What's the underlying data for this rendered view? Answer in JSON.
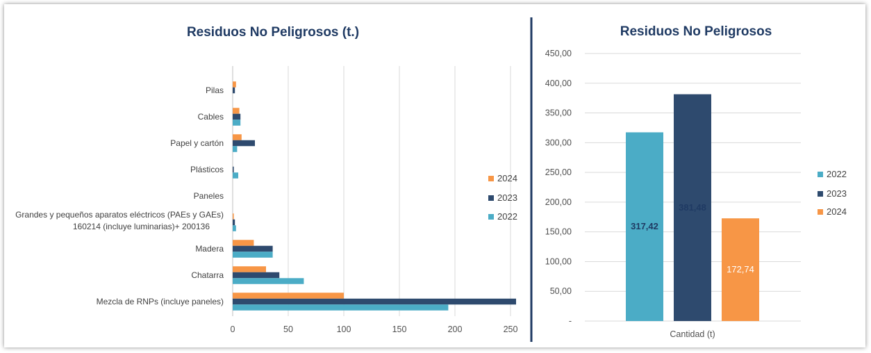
{
  "colors": {
    "s2022": "#4bacc6",
    "s2023": "#2e4a6e",
    "s2024": "#f79646",
    "divider": "#1f3a63",
    "grid": "#d9d9d9"
  },
  "chart_data": [
    {
      "type": "bar",
      "orientation": "horizontal",
      "title": "Residuos No Peligrosos (t.)",
      "categories": [
        "Mezcla de RNPs (incluye paneles)",
        "Chatarra",
        "Madera",
        "Grandes y pequeños aparatos eléctricos (PAEs y GAEs) 160214 (incluye luminarias)+ 200136",
        "Paneles",
        "Plásticos",
        "Papel y cartón",
        "Cables",
        "Pilas"
      ],
      "series": [
        {
          "name": "2022",
          "values": [
            194,
            64,
            36,
            3,
            0,
            5,
            4,
            7,
            0
          ]
        },
        {
          "name": "2023",
          "values": [
            255,
            42,
            36,
            2,
            0,
            1,
            20,
            7,
            2
          ]
        },
        {
          "name": "2024",
          "values": [
            100,
            30,
            19,
            1,
            0,
            0,
            8,
            6,
            3
          ]
        }
      ],
      "xlim": [
        0,
        260
      ],
      "xticks": [
        0,
        50,
        100,
        150,
        200,
        250
      ],
      "grid": true,
      "legend": "right"
    },
    {
      "type": "bar",
      "title": "Residuos No Peligrosos",
      "categories": [
        "Cantidad (t)"
      ],
      "series": [
        {
          "name": "2022",
          "values": [
            317.42
          ],
          "label": "317,42"
        },
        {
          "name": "2023",
          "values": [
            381.48
          ],
          "label": "381,48"
        },
        {
          "name": "2024",
          "values": [
            172.74
          ],
          "label": "172,74"
        }
      ],
      "ylim": [
        0,
        450
      ],
      "yticks": [
        "-",
        "50,00",
        "100,00",
        "150,00",
        "200,00",
        "250,00",
        "300,00",
        "350,00",
        "400,00",
        "450,00"
      ],
      "grid": true,
      "legend": "right"
    }
  ]
}
